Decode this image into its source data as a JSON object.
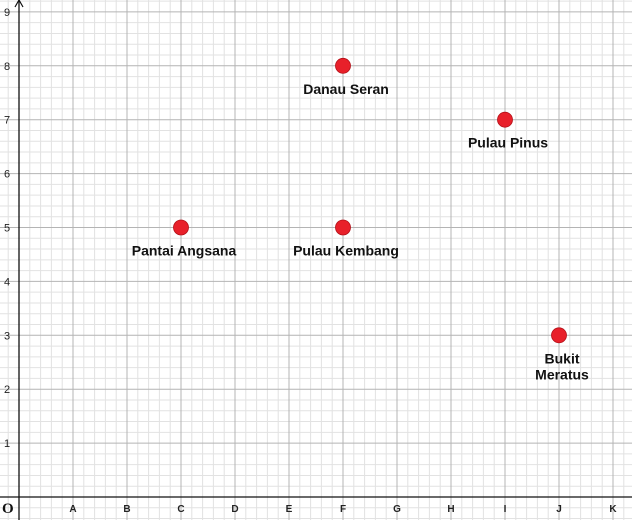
{
  "chart_data": {
    "type": "scatter",
    "title": "",
    "xlabel": "",
    "ylabel": "",
    "origin_label": "O",
    "x_categories": [
      "A",
      "B",
      "C",
      "D",
      "E",
      "F",
      "G",
      "H",
      "I",
      "J",
      "K"
    ],
    "y_ticks": [
      "1",
      "2",
      "3",
      "4",
      "5",
      "6",
      "7",
      "8",
      "9"
    ],
    "xlim": [
      0,
      11.5
    ],
    "ylim": [
      0,
      9.3
    ],
    "grid": true,
    "minor_grid_per_unit": 5,
    "point_color": "#e8202a",
    "points": [
      {
        "label": "Danau Seran",
        "x": "F",
        "y": 8,
        "label_pos": "below"
      },
      {
        "label": "Pulau Pinus",
        "x": "I",
        "y": 7,
        "label_pos": "below"
      },
      {
        "label": "Pantai Angsana",
        "x": "C",
        "y": 5,
        "label_pos": "below"
      },
      {
        "label": "Pulau Kembang",
        "x": "F",
        "y": 5,
        "label_pos": "below"
      },
      {
        "label": "Bukit Meratus",
        "x": "J",
        "y": 3,
        "label_pos": "below",
        "label_lines": [
          "Bukit",
          "Meratus"
        ]
      }
    ]
  }
}
